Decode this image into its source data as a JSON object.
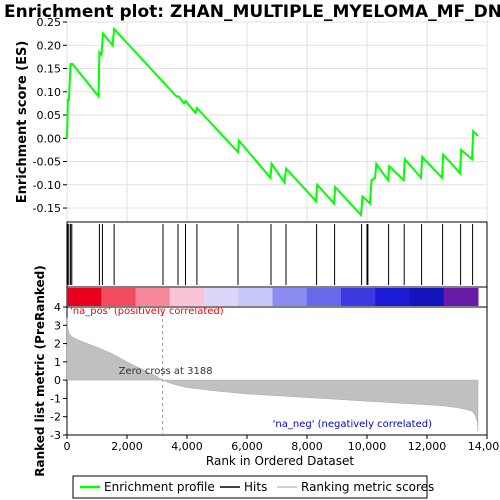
{
  "chart_data": {
    "type": "line",
    "title": "Enrichment plot: ZHAN_MULTIPLE_MYELOMA_MF_DN",
    "top_panel": {
      "ylabel": "Enrichment score (ES)",
      "ylim": [
        -0.18,
        0.25
      ],
      "yticks": [
        0.25,
        0.2,
        0.15,
        0.1,
        0.05,
        0.0,
        -0.05,
        -0.1,
        -0.15
      ],
      "ytick_labels": [
        "0.25",
        "0.20",
        "0.15",
        "0.10",
        "0.05",
        "0.00",
        "-0.05",
        "-0.10",
        "-0.15"
      ],
      "grid": true,
      "series": [
        {
          "name": "Enrichment profile",
          "color": "#00ff00",
          "x": [
            0,
            30,
            60,
            120,
            180,
            1050,
            1080,
            1150,
            1200,
            1520,
            1570,
            3650,
            3720,
            3900,
            3950,
            4280,
            4330,
            5700,
            5730,
            6780,
            6820,
            7250,
            7300,
            8300,
            8340,
            8900,
            8940,
            9800,
            9850,
            10100,
            10150,
            10270,
            10310,
            10700,
            10740,
            11220,
            11260,
            11800,
            11840,
            12500,
            12540,
            13100,
            13140,
            13500,
            13540,
            13700
          ],
          "values": [
            0.0,
            0.085,
            0.08,
            0.16,
            0.16,
            0.09,
            0.185,
            0.18,
            0.225,
            0.2,
            0.235,
            0.09,
            0.09,
            0.075,
            0.08,
            0.055,
            0.065,
            -0.03,
            -0.005,
            -0.085,
            -0.055,
            -0.095,
            -0.065,
            -0.135,
            -0.1,
            -0.14,
            -0.105,
            -0.165,
            -0.125,
            -0.14,
            -0.09,
            -0.085,
            -0.055,
            -0.09,
            -0.06,
            -0.09,
            -0.045,
            -0.085,
            -0.04,
            -0.085,
            -0.035,
            -0.075,
            -0.025,
            -0.045,
            0.015,
            0.005
          ]
        }
      ]
    },
    "hits": {
      "positions": [
        20,
        60,
        120,
        160,
        1080,
        1180,
        1570,
        3200,
        3700,
        3950,
        4330,
        5700,
        6800,
        7300,
        8320,
        8920,
        9820,
        10000,
        10030,
        10720,
        11240,
        11820,
        12520,
        13120,
        13520
      ]
    },
    "rank_bar": {
      "segments": [
        {
          "color": "#e8001e"
        },
        {
          "color": "#f24a5e"
        },
        {
          "color": "#f8879a"
        },
        {
          "color": "#fbc4d6"
        },
        {
          "color": "#dcd6f8"
        },
        {
          "color": "#c6c6f8"
        },
        {
          "color": "#8c8cf2"
        },
        {
          "color": "#6868ea"
        },
        {
          "color": "#3a3ae0"
        },
        {
          "color": "#1c1cd6"
        },
        {
          "color": "#1414bd"
        },
        {
          "color": "#6a1aa8"
        }
      ]
    },
    "bottom_panel": {
      "xlabel": "Rank in Ordered Dataset",
      "ylabel": "Ranked list metric (PreRanked)",
      "xlim": [
        0,
        14000
      ],
      "ylim": [
        -3,
        4
      ],
      "xticks": [
        0,
        2000,
        4000,
        6000,
        8000,
        10000,
        12000,
        14000
      ],
      "xtick_labels": [
        "0",
        "2,000",
        "4,000",
        "6,000",
        "8,000",
        "10,000",
        "12,000",
        "14,000"
      ],
      "yticks": [
        4,
        3,
        2,
        1,
        0,
        -1,
        -2,
        -3
      ],
      "ytick_labels": [
        "4",
        "3",
        "2",
        "1",
        "0",
        "-1",
        "-2",
        "-3"
      ],
      "metric_x": [
        0,
        20,
        60,
        150,
        300,
        600,
        1000,
        1500,
        2000,
        2500,
        3000,
        3188,
        3500,
        4000,
        5000,
        6000,
        7000,
        8000,
        9000,
        10000,
        11000,
        12000,
        12500,
        13000,
        13300,
        13500,
        13600,
        13680,
        13700
      ],
      "metric_y": [
        3.4,
        2.9,
        2.6,
        2.4,
        2.25,
        2.05,
        1.8,
        1.45,
        1.0,
        0.6,
        0.2,
        0.0,
        -0.2,
        -0.4,
        -0.6,
        -0.75,
        -0.85,
        -0.95,
        -1.05,
        -1.15,
        -1.25,
        -1.35,
        -1.4,
        -1.5,
        -1.6,
        -1.7,
        -1.9,
        -2.3,
        -2.8
      ],
      "zero_cross": 3188,
      "zero_cross_label": "Zero cross at 3188",
      "pos_label": "'na_pos' (positively correlated)",
      "neg_label": "'na_neg' (negatively correlated)",
      "pos_color": "#ff0000",
      "neg_color": "#0000cc"
    },
    "legend": {
      "items": [
        {
          "label": "Enrichment profile",
          "color": "#00ff00"
        },
        {
          "label": "Hits",
          "color": "#000000"
        },
        {
          "label": "Ranking metric scores",
          "color": "#c0c0c0"
        }
      ]
    }
  }
}
